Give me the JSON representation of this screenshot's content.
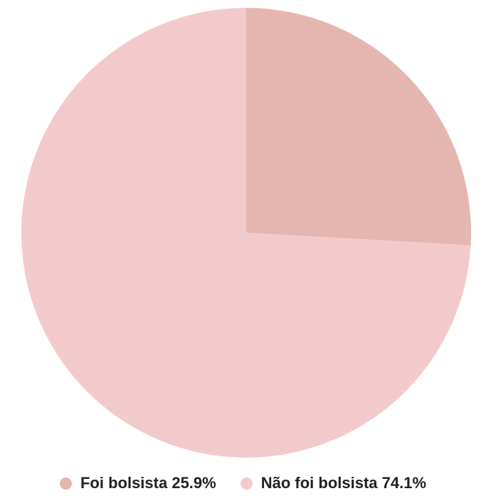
{
  "chart_data": {
    "type": "pie",
    "title": "",
    "start_angle_deg": 0,
    "direction": "clockwise",
    "slices": [
      {
        "label": "Foi bolsista",
        "value": 25.9,
        "display": "Foi bolsista 25.9%",
        "color": "#e5b6af"
      },
      {
        "label": "Não foi bolsista",
        "value": 74.1,
        "display": "Não foi bolsista 74.1%",
        "color": "#f3cacb"
      }
    ],
    "legend_position": "bottom"
  }
}
